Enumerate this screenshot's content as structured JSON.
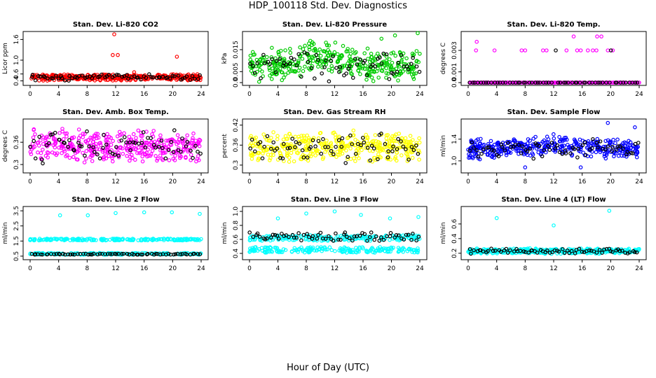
{
  "title": "HDP_100118  Std. Dev. Diagnostics",
  "xlabel": "Hour of Day (UTC)",
  "colors": {
    "red": "#ff0000",
    "green": "#00cc00",
    "magenta": "#ff00ff",
    "yellow": "#ffff00",
    "blue": "#0000ff",
    "cyan": "#00ffff",
    "black": "#000000"
  },
  "chart_data": [
    {
      "type": "scatter",
      "title": "Stan. Dev. Li-820 CO2",
      "ylabel": "Licor ppm",
      "xlim": [
        0,
        24
      ],
      "ylim": [
        0.35,
        1.75
      ],
      "xticks": [
        0,
        4,
        8,
        12,
        16,
        20,
        24
      ],
      "yticks": [
        0.4,
        0.6,
        1.0,
        1.6
      ],
      "color": "red",
      "base": 0.5,
      "spread": 0.05,
      "outliers": [
        [
          11.8,
          1.75
        ],
        [
          11.6,
          1.15
        ],
        [
          12.3,
          1.15
        ],
        [
          20.6,
          1.1
        ],
        [
          14.6,
          0.65
        ]
      ]
    },
    {
      "type": "scatter",
      "title": "Stan. Dev. Li-820 Pressure",
      "ylabel": "kPa",
      "xlim": [
        0,
        24
      ],
      "ylim": [
        0,
        0.022
      ],
      "xticks": [
        0,
        4,
        8,
        12,
        16,
        20,
        24
      ],
      "yticks": [
        0.0,
        0.005,
        0.015
      ],
      "color": "green",
      "base": 0.008,
      "spread": 0.004,
      "outliers": [
        [
          23.7,
          0.0225
        ],
        [
          20.5,
          0.0215
        ],
        [
          18.6,
          0.02
        ]
      ]
    },
    {
      "type": "scatter",
      "title": "Stan. Dev. Li-820 Temp.",
      "ylabel": "degrees C",
      "xlim": [
        0,
        24
      ],
      "ylim": [
        0,
        0.0045
      ],
      "xticks": [
        0,
        4,
        8,
        12,
        16,
        20,
        24
      ],
      "yticks": [
        0.0,
        0.001,
        0.003
      ],
      "color": "magenta",
      "base": 0,
      "spread": 0,
      "discrete_levels": [
        0.0,
        0.003
      ],
      "upper_level_points": [
        1.1,
        3.7,
        7.5,
        8.0,
        10.5,
        11.0,
        13.8,
        15.3,
        15.8,
        16.8,
        17.5,
        18.0,
        19.6,
        20.3
      ],
      "outliers": [
        [
          1.2,
          0.0038
        ],
        [
          14.8,
          0.0043
        ],
        [
          18.1,
          0.0043
        ],
        [
          18.7,
          0.0043
        ]
      ]
    },
    {
      "type": "scatter",
      "title": "Stan. Dev. Amb. Box Temp.",
      "ylabel": "degrees C",
      "xlim": [
        0,
        24
      ],
      "ylim": [
        0.285,
        0.415
      ],
      "xticks": [
        0,
        4,
        8,
        12,
        16,
        20,
        24
      ],
      "yticks": [
        0.3,
        0.36
      ],
      "color": "magenta",
      "base": 0.35,
      "spread": 0.025,
      "outliers": []
    },
    {
      "type": "scatter",
      "title": "Stan. Dev. Gas Stream RH",
      "ylabel": "percent",
      "xlim": [
        0,
        24
      ],
      "ylim": [
        0.285,
        0.43
      ],
      "xticks": [
        0,
        4,
        8,
        12,
        16,
        20,
        24
      ],
      "yticks": [
        0.3,
        0.36,
        0.42
      ],
      "color": "yellow",
      "base": 0.355,
      "spread": 0.025,
      "outliers": []
    },
    {
      "type": "scatter",
      "title": "Stan. Dev. Sample Flow",
      "ylabel": "ml/min",
      "xlim": [
        0,
        24
      ],
      "ylim": [
        0.83,
        1.72
      ],
      "xticks": [
        0,
        4,
        8,
        12,
        16,
        20,
        24
      ],
      "yticks": [
        1.0,
        1.4
      ],
      "color": "blue",
      "base": 1.22,
      "spread": 0.1,
      "outliers": [
        [
          19.6,
          1.7
        ],
        [
          23.4,
          1.62
        ],
        [
          8.0,
          0.88
        ],
        [
          15.8,
          0.88
        ]
      ]
    },
    {
      "type": "scatter",
      "title": "Stan. Dev. Line 2 Flow",
      "ylabel": "ml/min",
      "xlim": [
        0,
        24
      ],
      "ylim": [
        0.45,
        3.6
      ],
      "xticks": [
        0,
        4,
        8,
        12,
        16,
        20,
        24
      ],
      "yticks": [
        0.5,
        1.5,
        2.5,
        3.5
      ],
      "color": "cyan",
      "bands": [
        0.65,
        1.6
      ],
      "spread": 0.06,
      "outliers": [
        [
          4.2,
          3.2
        ],
        [
          8.1,
          3.2
        ],
        [
          12.0,
          3.35
        ],
        [
          16.0,
          3.4
        ],
        [
          19.9,
          3.4
        ],
        [
          23.8,
          3.3
        ]
      ]
    },
    {
      "type": "scatter",
      "title": "Stan. Dev. Line 3 Flow",
      "ylabel": "ml/min",
      "xlim": [
        0,
        24
      ],
      "ylim": [
        0.35,
        1.03
      ],
      "xticks": [
        0,
        4,
        8,
        12,
        16,
        20,
        24
      ],
      "yticks": [
        0.4,
        0.6,
        0.8,
        1.0
      ],
      "color": "cyan",
      "bands": [
        0.45,
        0.62
      ],
      "spread": 0.04,
      "outliers": [
        [
          4.0,
          0.9
        ],
        [
          8.0,
          0.97
        ],
        [
          12.0,
          1.0
        ],
        [
          15.7,
          0.95
        ],
        [
          19.8,
          0.9
        ],
        [
          23.8,
          0.92
        ]
      ]
    },
    {
      "type": "scatter",
      "title": "Stan. Dev. Line 4 (LT) Flow",
      "ylabel": "ml/min",
      "xlim": [
        0,
        24
      ],
      "ylim": [
        0.15,
        0.8
      ],
      "xticks": [
        0,
        4,
        8,
        12,
        16,
        20,
        24
      ],
      "yticks": [
        0.2,
        0.4,
        0.6
      ],
      "color": "cyan",
      "base": 0.23,
      "spread": 0.02,
      "outliers": [
        [
          4.0,
          0.68
        ],
        [
          12.0,
          0.58
        ],
        [
          19.8,
          0.78
        ]
      ]
    }
  ]
}
